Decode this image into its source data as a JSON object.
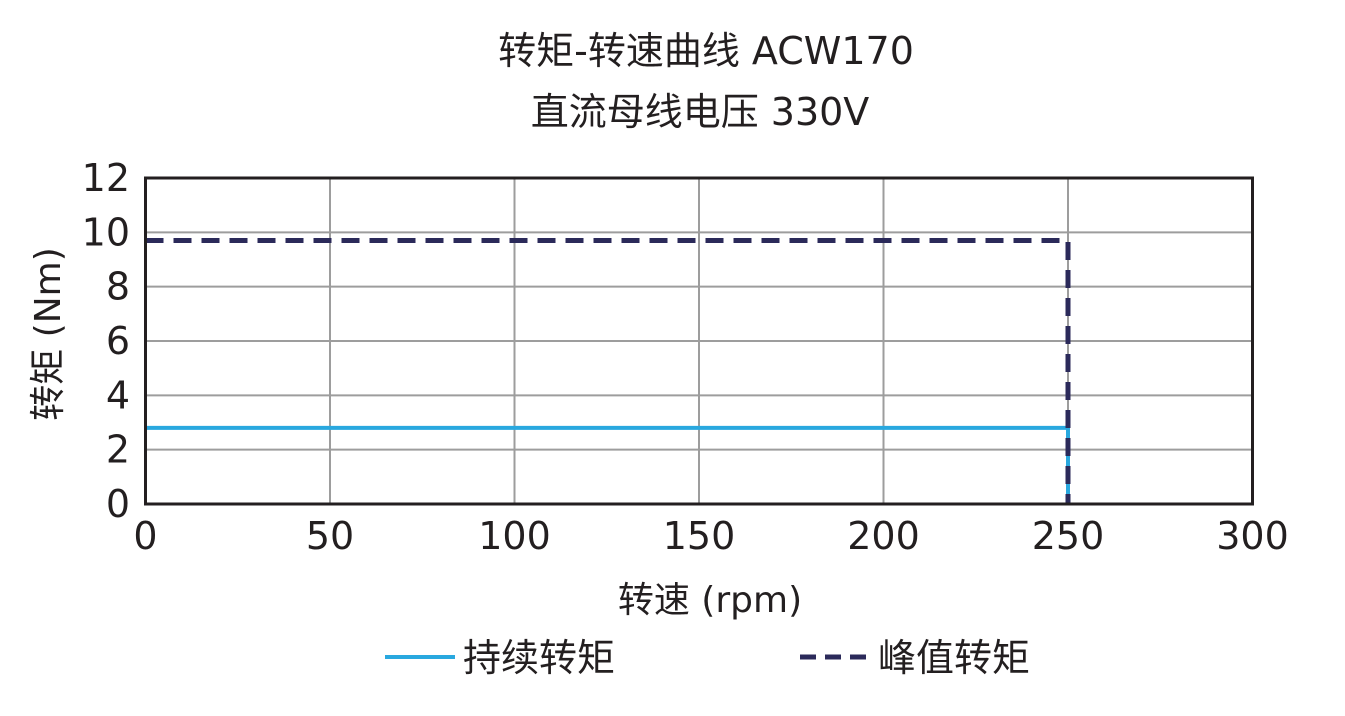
{
  "chart_data": {
    "type": "line",
    "title": "转矩-转速曲线 ACW170",
    "subtitle": "直流母线电压 330V",
    "xlabel": "转速 (rpm)",
    "ylabel": "转矩 (Nm)",
    "xlim": [
      0,
      300
    ],
    "ylim": [
      0,
      12
    ],
    "x_ticks": [
      0,
      50,
      100,
      150,
      200,
      250,
      300
    ],
    "y_ticks": [
      0,
      2,
      4,
      6,
      8,
      10,
      12
    ],
    "grid": true,
    "legend_position": "bottom",
    "series": [
      {
        "name": "持续转矩",
        "style": "solid",
        "color": "#29a8df",
        "x": [
          0,
          250,
          250
        ],
        "y": [
          2.8,
          2.8,
          0
        ]
      },
      {
        "name": "峰值转矩",
        "style": "dashed",
        "color": "#2b2a5a",
        "x": [
          0,
          250,
          250
        ],
        "y": [
          9.7,
          9.7,
          0
        ]
      }
    ]
  }
}
